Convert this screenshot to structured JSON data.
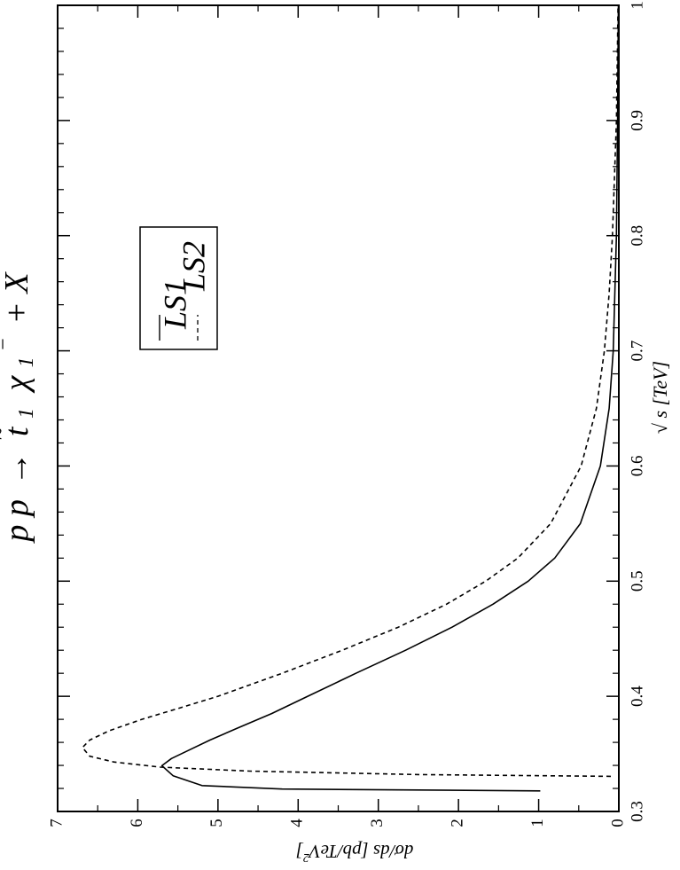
{
  "chart_data": {
    "type": "line",
    "orientation": "rotated-90-clockwise",
    "title": "p p → t̃₁ χ₁⁻ + X",
    "title_parts": {
      "pp": "p p",
      "arrow": "→",
      "t": "t",
      "tilde": "~",
      "sub1": "1",
      "chi": "χ",
      "sub2": "1",
      "sup": "−",
      "plus_x": "+ X"
    },
    "xlabel": "√ s  [TeV]",
    "ylabel": "dσ/ds [pb/TeV²]",
    "ylabel_parts": {
      "main": "dσ/ds [pb/TeV",
      "sup": "2",
      "close": "]"
    },
    "xlim": [
      0.3,
      1.0
    ],
    "ylim": [
      0,
      7
    ],
    "x_ticks": [
      "0.3",
      "0.4",
      "0.5",
      "0.6",
      "0.7",
      "0.8",
      "0.9",
      "1"
    ],
    "y_ticks": [
      "0",
      "1",
      "2",
      "3",
      "4",
      "5",
      "6",
      "7"
    ],
    "legend_position": "upper-left",
    "series": [
      {
        "name": "LS1",
        "style": "solid",
        "points": [
          [
            0.3179,
            0.98
          ],
          [
            0.3195,
            4.2
          ],
          [
            0.3225,
            5.2
          ],
          [
            0.331,
            5.56
          ],
          [
            0.3397,
            5.7
          ],
          [
            0.346,
            5.58
          ],
          [
            0.353,
            5.37
          ],
          [
            0.362,
            5.1
          ],
          [
            0.372,
            4.77
          ],
          [
            0.385,
            4.33
          ],
          [
            0.4,
            3.88
          ],
          [
            0.42,
            3.28
          ],
          [
            0.44,
            2.66
          ],
          [
            0.46,
            2.08
          ],
          [
            0.48,
            1.57
          ],
          [
            0.5,
            1.13
          ],
          [
            0.52,
            0.8
          ],
          [
            0.55,
            0.48
          ],
          [
            0.6,
            0.23
          ],
          [
            0.65,
            0.12
          ],
          [
            0.7,
            0.07
          ],
          [
            0.8,
            0.03
          ],
          [
            0.9,
            0.015
          ],
          [
            1.0,
            0.005
          ]
        ]
      },
      {
        "name": "LS2",
        "style": "dashed",
        "points": [
          [
            0.3305,
            0.1
          ],
          [
            0.332,
            2.5
          ],
          [
            0.335,
            4.6
          ],
          [
            0.3385,
            5.72
          ],
          [
            0.343,
            6.3
          ],
          [
            0.348,
            6.6
          ],
          [
            0.3555,
            6.69
          ],
          [
            0.362,
            6.6
          ],
          [
            0.37,
            6.36
          ],
          [
            0.38,
            5.95
          ],
          [
            0.39,
            5.47
          ],
          [
            0.4,
            5.0
          ],
          [
            0.42,
            4.2
          ],
          [
            0.44,
            3.45
          ],
          [
            0.46,
            2.75
          ],
          [
            0.48,
            2.15
          ],
          [
            0.5,
            1.66
          ],
          [
            0.52,
            1.26
          ],
          [
            0.55,
            0.85
          ],
          [
            0.6,
            0.47
          ],
          [
            0.65,
            0.28
          ],
          [
            0.7,
            0.18
          ],
          [
            0.75,
            0.12
          ],
          [
            0.8,
            0.08
          ],
          [
            0.9,
            0.03
          ],
          [
            1.0,
            0.01
          ]
        ]
      }
    ],
    "line_color": "#000000"
  }
}
